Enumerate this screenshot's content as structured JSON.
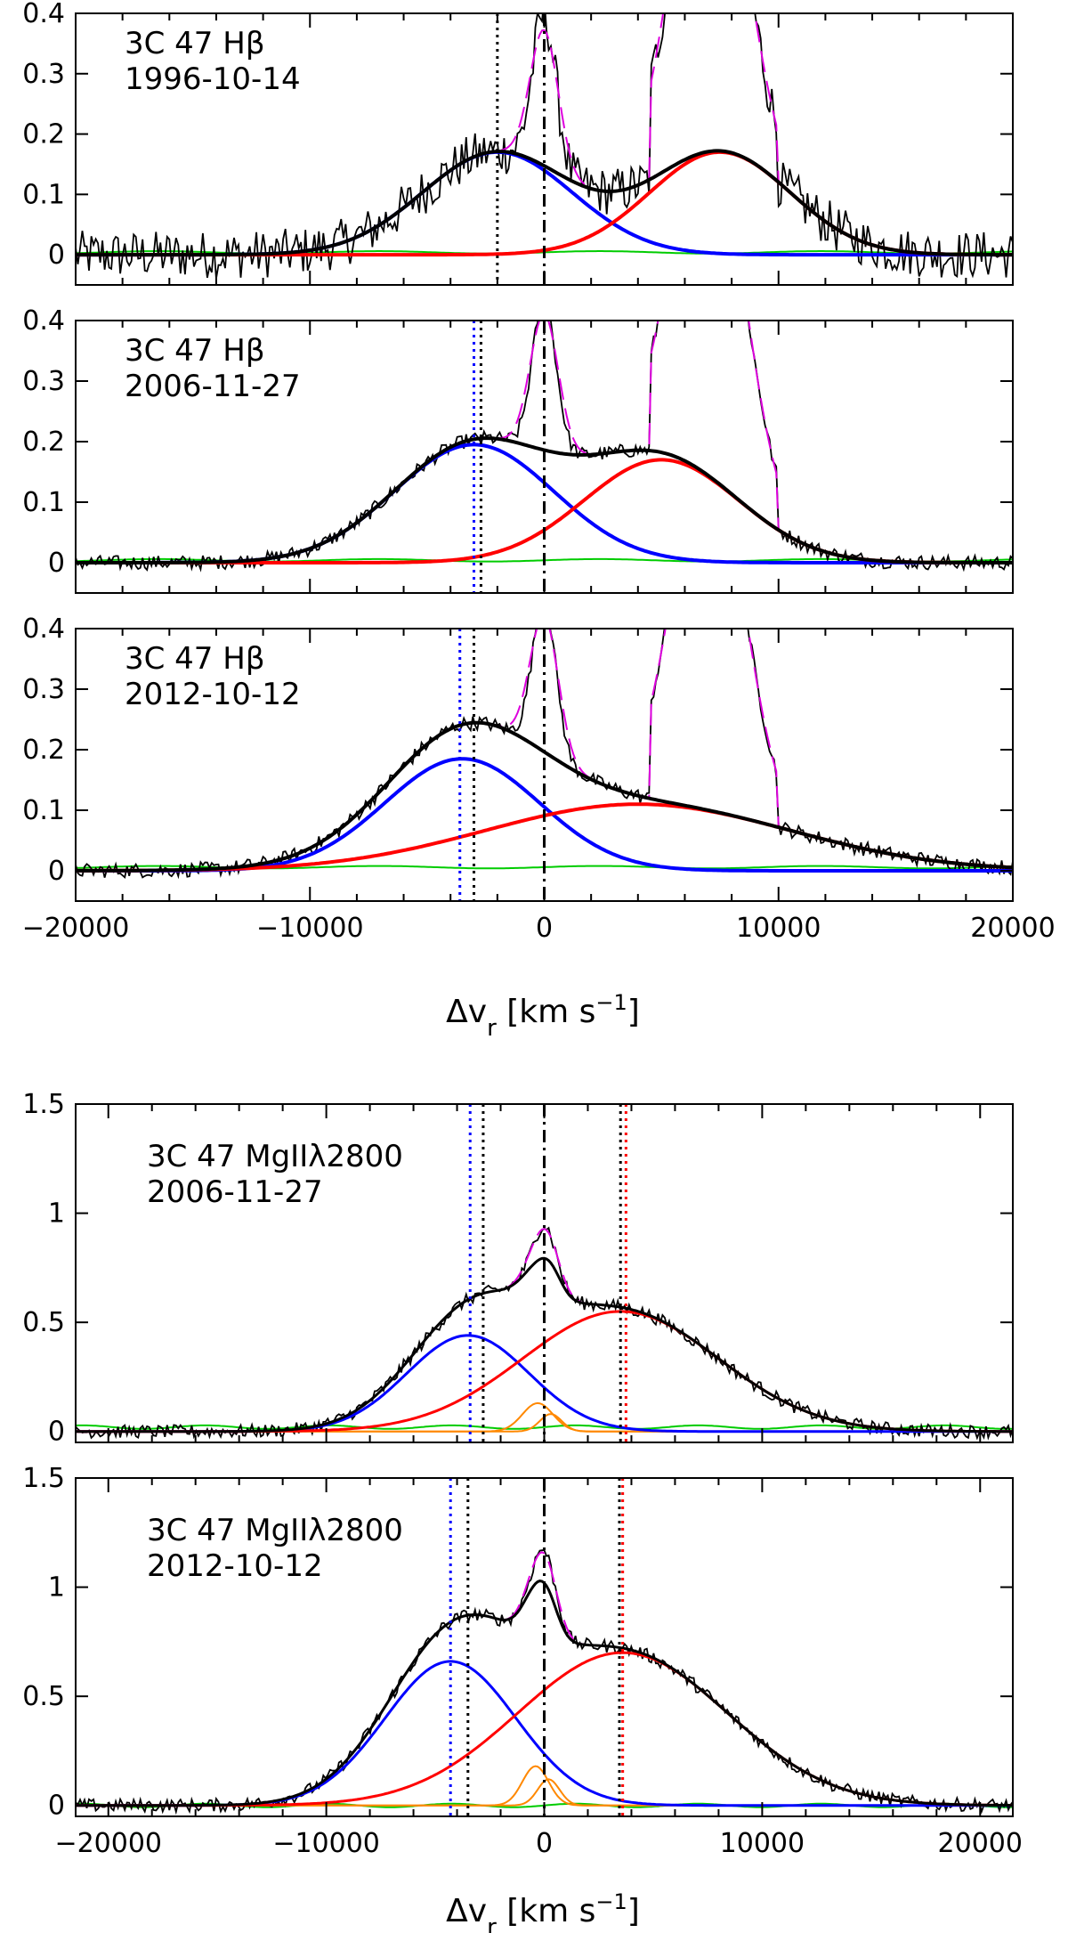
{
  "figure": {
    "xlabel_top": "Δv_r [km s⁻¹]",
    "xlabel_bottom": "Δv_r [km s⁻¹]"
  },
  "chart_data": [
    {
      "type": "line",
      "label_line1": "3C 47 Hβ",
      "label_line2": "1996-10-14",
      "xlim": [
        -20000,
        20000
      ],
      "ylim": [
        -0.05,
        0.4
      ],
      "yticks": [
        0,
        0.1,
        0.2,
        0.3,
        0.4
      ],
      "ytick_labels": [
        "0",
        "0.1",
        "0.2",
        "0.3",
        "0.4"
      ],
      "vlines": [
        {
          "x": -2000,
          "color": "#000000",
          "style": "dotted"
        },
        {
          "x": 0,
          "color": "#000000",
          "style": "dashdot"
        }
      ],
      "components": {
        "blue": {
          "amp": 0.17,
          "center": -2000,
          "sigma": 3200
        },
        "red": {
          "amp": 0.17,
          "center": 7500,
          "sigma": 3000
        },
        "green_level": 0.004
      }
    },
    {
      "type": "line",
      "label_line1": "3C 47 Hβ",
      "label_line2": "2006-11-27",
      "xlim": [
        -20000,
        20000
      ],
      "ylim": [
        -0.05,
        0.4
      ],
      "yticks": [
        0,
        0.1,
        0.2,
        0.3,
        0.4
      ],
      "ytick_labels": [
        "0",
        "0.1",
        "0.2",
        "0.3",
        "0.4"
      ],
      "vlines": [
        {
          "x": -3000,
          "color": "#0000ff",
          "style": "dotted"
        },
        {
          "x": -2700,
          "color": "#000000",
          "style": "dotted"
        },
        {
          "x": 0,
          "color": "#000000",
          "style": "dashdot"
        }
      ],
      "components": {
        "blue": {
          "amp": 0.195,
          "center": -3000,
          "sigma": 3400
        },
        "red": {
          "amp": 0.17,
          "center": 5000,
          "sigma": 3300
        },
        "green_level": 0.004
      }
    },
    {
      "type": "line",
      "label_line1": "3C 47 Hβ",
      "label_line2": "2012-10-12",
      "xlim": [
        -20000,
        20000
      ],
      "ylim": [
        -0.05,
        0.4
      ],
      "yticks": [
        0,
        0.1,
        0.2,
        0.3,
        0.4
      ],
      "ytick_labels": [
        "0",
        "0.1",
        "0.2",
        "0.3",
        "0.4"
      ],
      "vlines": [
        {
          "x": -3600,
          "color": "#0000ff",
          "style": "dotted"
        },
        {
          "x": -3000,
          "color": "#000000",
          "style": "dotted"
        },
        {
          "x": 0,
          "color": "#000000",
          "style": "dashdot"
        }
      ],
      "components": {
        "blue": {
          "amp": 0.185,
          "center": -3500,
          "sigma": 3300
        },
        "red": {
          "amp": 0.11,
          "center": 4000,
          "sigma": 6500
        },
        "green_level": 0.006
      }
    },
    {
      "type": "line",
      "label_line1": "3C 47 MgIIλ2800",
      "label_line2": "2006-11-27",
      "xlim": [
        -21500,
        21500
      ],
      "ylim": [
        -0.05,
        1.5
      ],
      "yticks": [
        0,
        0.5,
        1,
        1.5
      ],
      "ytick_labels": [
        "0",
        "0.5",
        "1",
        "1.5"
      ],
      "vlines": [
        {
          "x": -3400,
          "color": "#0000ff",
          "style": "dotted"
        },
        {
          "x": -2800,
          "color": "#000000",
          "style": "dotted"
        },
        {
          "x": 0,
          "color": "#000000",
          "style": "dashdot"
        },
        {
          "x": 3500,
          "color": "#000000",
          "style": "dotted"
        },
        {
          "x": 3750,
          "color": "#ff0000",
          "style": "dotted"
        }
      ],
      "components": {
        "blue": {
          "amp": 0.44,
          "center": -3500,
          "sigma": 2800
        },
        "red": {
          "amp": 0.55,
          "center": 3500,
          "sigma": 4500
        },
        "orange": [
          {
            "amp": 0.13,
            "center": -300,
            "sigma": 700
          },
          {
            "amp": 0.08,
            "center": 300,
            "sigma": 500
          }
        ],
        "green_level": 0.02
      }
    },
    {
      "type": "line",
      "label_line1": "3C 47 MgIIλ2800",
      "label_line2": "2012-10-12",
      "xlim": [
        -21500,
        21500
      ],
      "ylim": [
        -0.05,
        1.5
      ],
      "yticks": [
        0,
        0.5,
        1,
        1.5
      ],
      "ytick_labels": [
        "0",
        "0.5",
        "1",
        "1.5"
      ],
      "vlines": [
        {
          "x": -4300,
          "color": "#0000ff",
          "style": "dotted"
        },
        {
          "x": -3500,
          "color": "#000000",
          "style": "dotted"
        },
        {
          "x": 0,
          "color": "#000000",
          "style": "dashdot"
        },
        {
          "x": 3450,
          "color": "#000000",
          "style": "dotted"
        },
        {
          "x": 3600,
          "color": "#ff0000",
          "style": "dotted"
        }
      ],
      "components": {
        "blue": {
          "amp": 0.66,
          "center": -4300,
          "sigma": 3000
        },
        "red": {
          "amp": 0.7,
          "center": 3600,
          "sigma": 4800
        },
        "orange": [
          {
            "amp": 0.18,
            "center": -400,
            "sigma": 600
          },
          {
            "amp": 0.12,
            "center": 200,
            "sigma": 500
          }
        ],
        "green_level": 0.0
      }
    }
  ],
  "xaxis_top": {
    "ticks": [
      -20000,
      -10000,
      0,
      10000,
      20000
    ],
    "tick_labels": [
      "−20000",
      "−10000",
      "0",
      "10000",
      "20000"
    ]
  },
  "xaxis_bottom": {
    "ticks": [
      -20000,
      -10000,
      0,
      10000,
      20000
    ],
    "tick_labels": [
      "−20000",
      "−10000",
      "0",
      "10000",
      "20000"
    ]
  }
}
